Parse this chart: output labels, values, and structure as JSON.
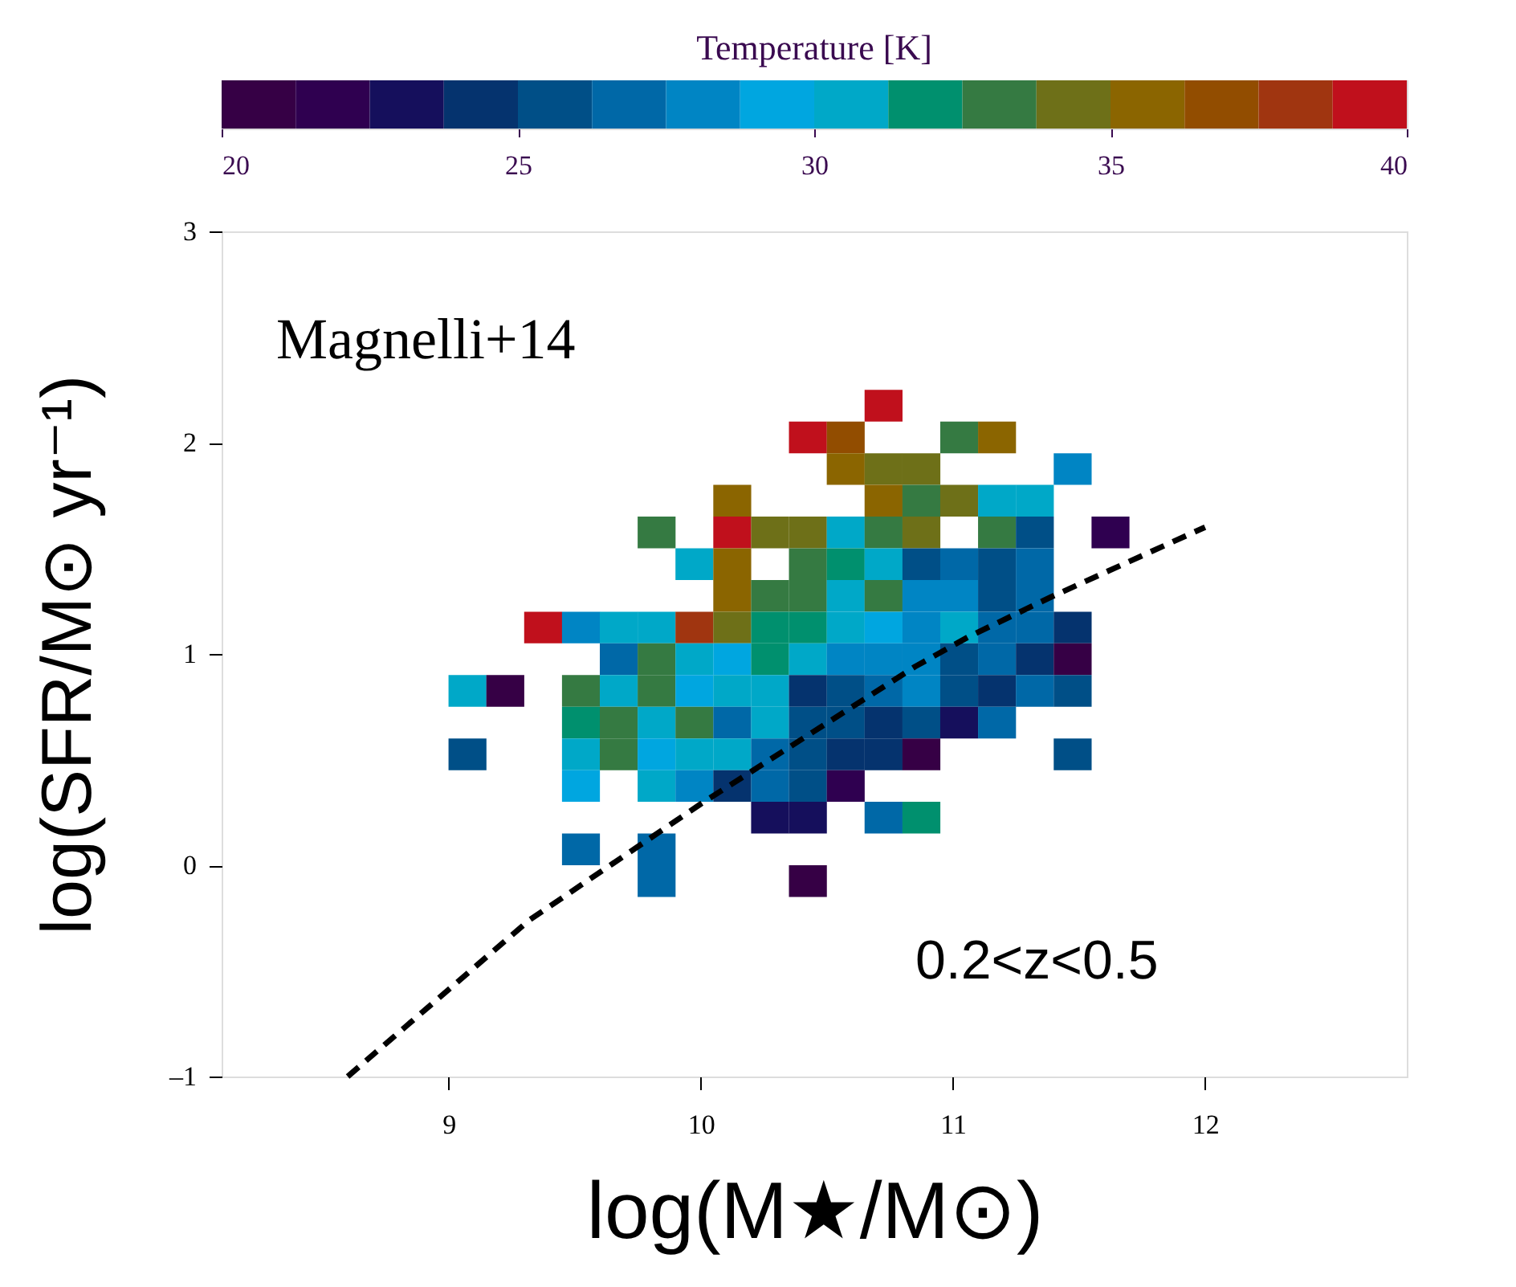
{
  "chart_data": {
    "type": "scatter",
    "xlabel": "log(M★/M⊙)",
    "ylabel": "log(SFR/M⊙ yr⁻¹)",
    "clabel": "Temperature [K]",
    "xlim": [
      8.1,
      12.8
    ],
    "ylim": [
      -1,
      3
    ],
    "xticks": [
      9,
      10,
      11,
      12
    ],
    "yticks": [
      {
        "value": -1,
        "label": "–1"
      },
      0,
      1,
      2,
      3
    ],
    "clim": [
      20,
      40
    ],
    "cticks": [
      20,
      25,
      30,
      35,
      40
    ],
    "grid": false,
    "annotations": [
      "Magnelli+14",
      "0.2<z<0.5"
    ],
    "series": [
      {
        "marker": "square",
        "colors": [
          "#c0101c",
          "#c0101c",
          "#924d00",
          "#357a42",
          "#8b6500",
          "#8b6500",
          "#6e7018",
          "#6e7018",
          "#0085c4",
          "#8b6500",
          "#8b6500",
          "#357a42",
          "#6e7018",
          "#00a8c8",
          "#00a8c8",
          "#357a42",
          "#c0101c",
          "#6e7018",
          "#6e7018",
          "#00a8c8",
          "#357a42",
          "#6e7018",
          "#357a42",
          "#004f87",
          "#2f0050",
          "#00a8c8",
          "#8b6500",
          "#357a42",
          "#00906e",
          "#00a8c8",
          "#004f87",
          "#0068a7",
          "#004f87",
          "#0068a7",
          "#8b6500",
          "#357a42",
          "#357a42",
          "#00a8c8",
          "#357a42",
          "#0085c4",
          "#0085c4",
          "#004f87",
          "#0068a7",
          "#c0101c",
          "#0085c4",
          "#00a8c8",
          "#00a8c8",
          "#a03510",
          "#6e7018",
          "#00906e",
          "#00906e",
          "#00a8c8",
          "#00a6e0",
          "#0085c4",
          "#00a8c8",
          "#0068a7",
          "#0068a7",
          "#05336e",
          "#0068a7",
          "#357a42",
          "#00a8c8",
          "#00a6e0",
          "#00906e",
          "#00a8c8",
          "#0085c4",
          "#0085c4",
          "#0085c4",
          "#004f87",
          "#0068a7",
          "#05336e",
          "#360045",
          "#00a8c8",
          "#360045",
          "#357a42",
          "#00a8c8",
          "#357a42",
          "#00a6e0",
          "#00a8c8",
          "#00a8c8",
          "#05336e",
          "#004f87",
          "#0068a7",
          "#0085c4",
          "#004f87",
          "#05336e",
          "#0068a7",
          "#004f87",
          "#00906e",
          "#357a42",
          "#00a8c8",
          "#357a42",
          "#0068a7",
          "#00a8c8",
          "#004f87",
          "#004f87",
          "#05336e",
          "#004f87",
          "#150f5c",
          "#0068a7",
          "#004f87",
          "#00a8c8",
          "#357a42",
          "#00a6e0",
          "#00a8c8",
          "#00a8c8",
          "#0068a7",
          "#004f87",
          "#05336e",
          "#05336e",
          "#360045",
          "#004f87",
          "#00a6e0",
          "#00a8c8",
          "#0085c4",
          "#05336e",
          "#0068a7",
          "#004f87",
          "#2f0050",
          "#150f5c",
          "#150f5c",
          "#0068a7",
          "#00906e",
          "#0068a7",
          "#0068a7",
          "#0068a7",
          "#360045"
        ],
        "x": [
          10.725,
          10.425,
          10.575,
          11.025,
          11.175,
          10.575,
          10.725,
          10.875,
          11.475,
          10.125,
          10.725,
          10.875,
          11.025,
          11.175,
          11.325,
          9.825,
          10.125,
          10.275,
          10.425,
          10.575,
          10.725,
          10.875,
          11.175,
          11.325,
          11.625,
          9.975,
          10.125,
          10.425,
          10.575,
          10.725,
          10.875,
          11.025,
          11.175,
          11.325,
          10.125,
          10.275,
          10.425,
          10.575,
          10.725,
          10.875,
          11.025,
          11.175,
          11.325,
          9.375,
          9.525,
          9.675,
          9.825,
          9.975,
          10.125,
          10.275,
          10.425,
          10.575,
          10.725,
          10.875,
          11.025,
          11.175,
          11.325,
          11.475,
          9.675,
          9.825,
          9.975,
          10.125,
          10.275,
          10.425,
          10.575,
          10.725,
          10.875,
          11.025,
          11.175,
          11.325,
          11.475,
          9.075,
          9.225,
          9.525,
          9.675,
          9.825,
          9.975,
          10.125,
          10.275,
          10.425,
          10.575,
          10.725,
          10.875,
          11.025,
          11.175,
          11.325,
          11.475,
          9.525,
          9.675,
          9.825,
          9.975,
          10.125,
          10.275,
          10.425,
          10.575,
          10.725,
          10.875,
          11.025,
          11.175,
          9.075,
          9.525,
          9.675,
          9.825,
          9.975,
          10.125,
          10.275,
          10.425,
          10.575,
          10.725,
          10.875,
          11.475,
          9.525,
          9.825,
          9.975,
          10.125,
          10.275,
          10.425,
          10.575,
          10.275,
          10.425,
          10.725,
          10.875,
          9.525,
          9.825,
          9.825,
          10.425
        ],
        "values": [
          2.175,
          2.025,
          2.025,
          2.025,
          2.025,
          1.875,
          1.875,
          1.875,
          1.875,
          1.725,
          1.725,
          1.725,
          1.725,
          1.725,
          1.725,
          1.575,
          1.575,
          1.575,
          1.575,
          1.575,
          1.575,
          1.575,
          1.575,
          1.575,
          1.575,
          1.425,
          1.425,
          1.425,
          1.425,
          1.425,
          1.425,
          1.425,
          1.425,
          1.425,
          1.275,
          1.275,
          1.275,
          1.275,
          1.275,
          1.275,
          1.275,
          1.275,
          1.275,
          1.125,
          1.125,
          1.125,
          1.125,
          1.125,
          1.125,
          1.125,
          1.125,
          1.125,
          1.125,
          1.125,
          1.125,
          1.125,
          1.125,
          1.125,
          0.975,
          0.975,
          0.975,
          0.975,
          0.975,
          0.975,
          0.975,
          0.975,
          0.975,
          0.975,
          0.975,
          0.975,
          0.975,
          0.825,
          0.825,
          0.825,
          0.825,
          0.825,
          0.825,
          0.825,
          0.825,
          0.825,
          0.825,
          0.825,
          0.825,
          0.825,
          0.825,
          0.825,
          0.825,
          0.675,
          0.675,
          0.675,
          0.675,
          0.675,
          0.675,
          0.675,
          0.675,
          0.675,
          0.675,
          0.675,
          0.675,
          0.525,
          0.525,
          0.525,
          0.525,
          0.525,
          0.525,
          0.525,
          0.525,
          0.525,
          0.525,
          0.525,
          0.525,
          0.375,
          0.375,
          0.375,
          0.375,
          0.375,
          0.375,
          0.375,
          0.225,
          0.225,
          0.225,
          0.225,
          0.075,
          0.075,
          -0.075,
          -0.075
        ],
        "cvalues": [
          39.4,
          39.4,
          36.9,
          33.1,
          35.6,
          35.6,
          34.4,
          34.4,
          28.1,
          35.6,
          35.6,
          33.1,
          34.4,
          30.6,
          30.6,
          33.1,
          39.4,
          34.4,
          34.4,
          30.6,
          33.1,
          34.4,
          33.1,
          25.6,
          21.9,
          30.6,
          35.6,
          33.1,
          31.9,
          30.6,
          25.6,
          26.9,
          25.6,
          26.9,
          35.6,
          33.1,
          33.1,
          30.6,
          33.1,
          28.1,
          28.1,
          25.6,
          26.9,
          39.4,
          28.1,
          30.6,
          30.6,
          38.1,
          34.4,
          31.9,
          31.9,
          30.6,
          29.4,
          28.1,
          30.6,
          26.9,
          26.9,
          24.4,
          26.9,
          33.1,
          30.6,
          29.4,
          31.9,
          30.6,
          28.1,
          28.1,
          28.1,
          25.6,
          26.9,
          24.4,
          20.6,
          30.6,
          20.6,
          33.1,
          30.6,
          33.1,
          29.4,
          30.6,
          30.6,
          24.4,
          25.6,
          26.9,
          28.1,
          25.6,
          24.4,
          26.9,
          25.6,
          31.9,
          33.1,
          30.6,
          33.1,
          26.9,
          30.6,
          25.6,
          25.6,
          24.4,
          25.6,
          23.1,
          26.9,
          25.6,
          30.6,
          33.1,
          29.4,
          30.6,
          30.6,
          26.9,
          25.6,
          24.4,
          24.4,
          20.6,
          25.6,
          29.4,
          30.6,
          28.1,
          24.4,
          26.9,
          25.6,
          21.9,
          23.1,
          23.1,
          26.9,
          31.9,
          26.9,
          26.9,
          26.9,
          20.6
        ]
      },
      {
        "type": "line",
        "marker": "none",
        "line_style": "dashed",
        "color": "#000000",
        "x": [
          8.6,
          9.32,
          10.0,
          10.85,
          11.06,
          11.39,
          12.0
        ],
        "values": [
          -1.0,
          -0.26,
          0.29,
          0.94,
          1.08,
          1.27,
          1.6
        ]
      }
    ]
  }
}
